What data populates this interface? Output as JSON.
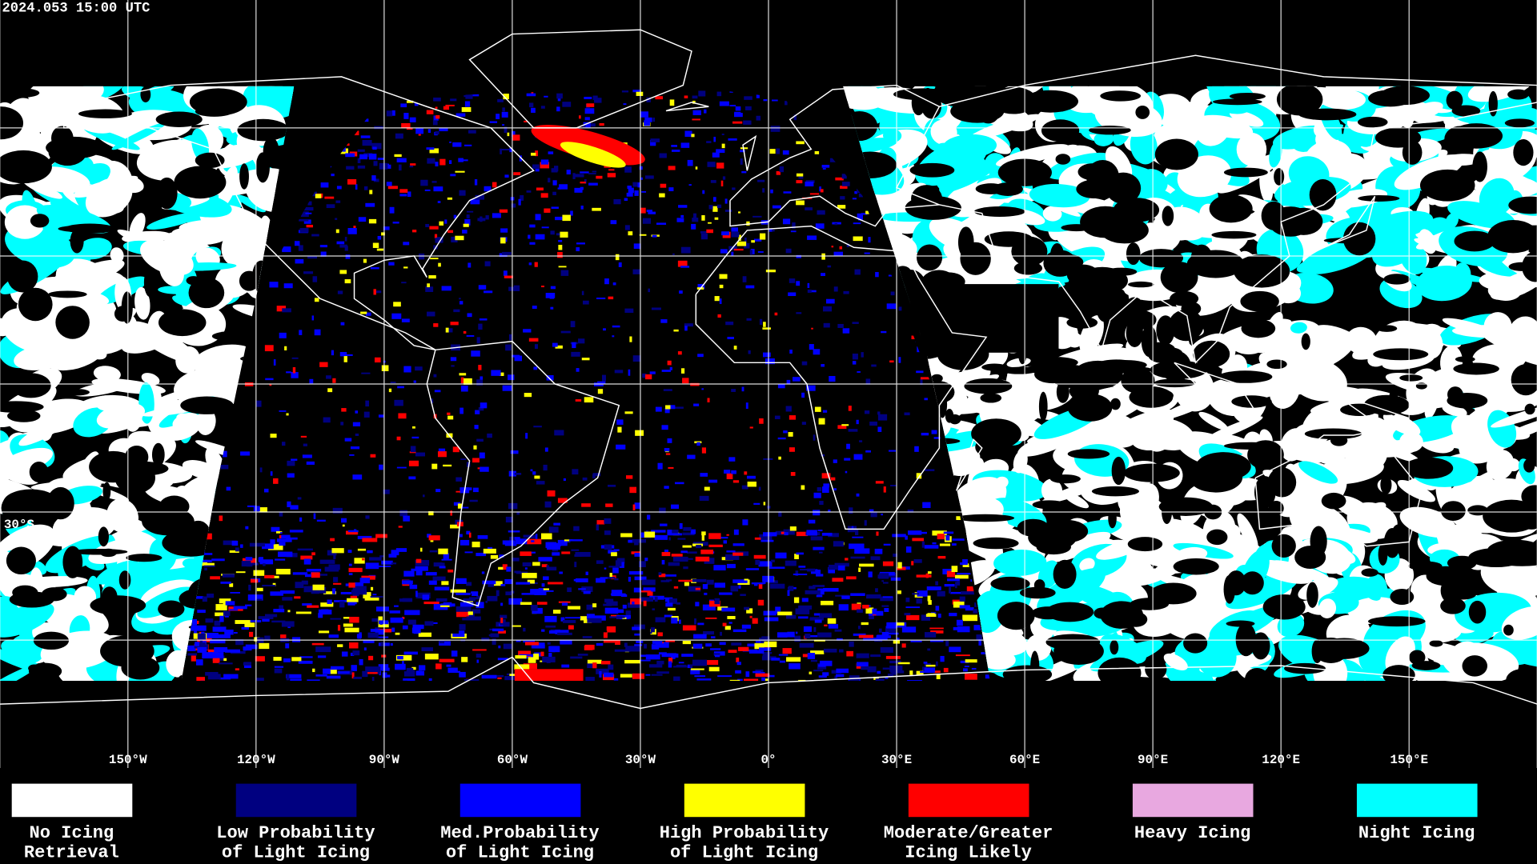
{
  "timestamp": "2024.053 15:00 UTC",
  "map": {
    "longitude_labels": [
      "150°W",
      "120°W",
      "90°W",
      "60°W",
      "30°W",
      "0°",
      "30°E",
      "60°E",
      "90°E",
      "120°E",
      "150°E"
    ],
    "latitude_labels": [
      "30°S"
    ]
  },
  "legend": [
    {
      "label_lines": [
        "No Icing",
        "Retrieval"
      ],
      "color": "#ffffff"
    },
    {
      "label_lines": [
        "Low Probability",
        "of Light Icing"
      ],
      "color": "#000080"
    },
    {
      "label_lines": [
        "Med.Probability",
        "of Light Icing"
      ],
      "color": "#0000ff"
    },
    {
      "label_lines": [
        "High Probability",
        "of Light Icing"
      ],
      "color": "#ffff00"
    },
    {
      "label_lines": [
        "Moderate/Greater",
        "Icing Likely"
      ],
      "color": "#ff0000"
    },
    {
      "label_lines": [
        "Heavy Icing"
      ],
      "color": "#e8a8e0"
    },
    {
      "label_lines": [
        "Night Icing"
      ],
      "color": "#00ffff"
    }
  ]
}
